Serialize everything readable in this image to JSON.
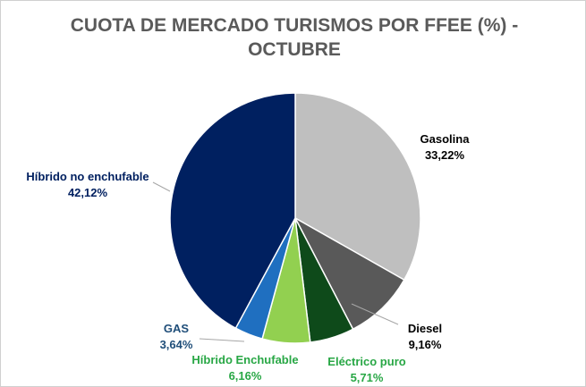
{
  "chart_data": {
    "type": "pie",
    "title_lines": [
      "CUOTA DE MERCADO TURISMOS POR FFEE (%) -",
      "OCTUBRE"
    ],
    "slices": [
      {
        "name": "Gasolina",
        "value": 33.22,
        "label": "33,22%",
        "color": "#bfbfbf",
        "label_color": "#000000"
      },
      {
        "name": "Diesel",
        "value": 9.16,
        "label": "9,16%",
        "color": "#595959",
        "label_color": "#000000"
      },
      {
        "name": "Eléctrico puro",
        "value": 5.71,
        "label": "5,71%",
        "color": "#0e4a1a",
        "label_color": "#28a745"
      },
      {
        "name": "Híbrido Enchufable",
        "value": 6.16,
        "label": "6,16%",
        "color": "#92d050",
        "label_color": "#28a745"
      },
      {
        "name": "GAS",
        "value": 3.64,
        "label": "3,64%",
        "color": "#1f6fc0",
        "label_color": "#1f4e79"
      },
      {
        "name": "Híbrido no enchufable",
        "value": 42.12,
        "label": "42,12%",
        "color": "#002060",
        "label_color": "#002060"
      }
    ]
  }
}
